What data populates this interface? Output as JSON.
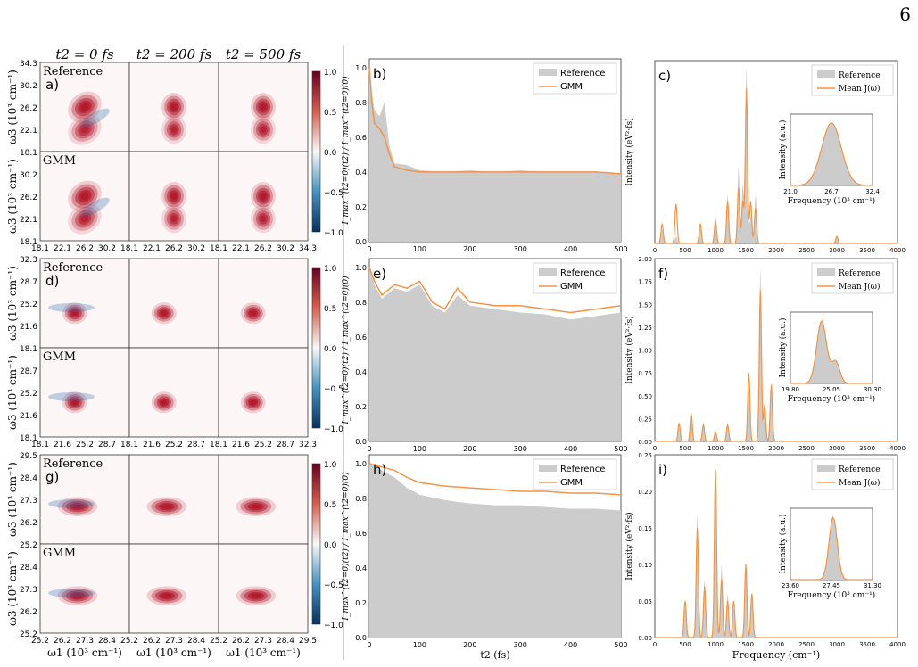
{
  "page_number": "6",
  "col_titles": [
    "t2 = 0 fs",
    "t2 = 200 fs",
    "t2 = 500 fs"
  ],
  "row_labels": {
    "reference": "Reference",
    "gmm": "GMM"
  },
  "omega1_label": "ω1 (10³ cm⁻¹)",
  "omega3_label": "ω3 (10³ cm⁻¹)",
  "colorbar_ticks": [
    "1.0",
    "0.5",
    "0.0",
    "−0.5",
    "−1.0"
  ],
  "decay_ylabel": "I_max^(t2=0)(t2) / I_max^(t2=0)(0)",
  "t2_label": "t2 (fs)",
  "spectrum_ylabel": "Intensity (eV²·fs)",
  "frequency_label": "Frequency (cm⁻¹)",
  "inset_ylabel": "Intensity (a.u.)",
  "inset_xlabel": "Frequency (10³ cm⁻¹)",
  "legend_decay": [
    "Reference",
    "GMM"
  ],
  "legend_spectrum": [
    "Reference",
    "Mean J(ω)"
  ],
  "colors": {
    "reference": "#cccccc",
    "model": "#f0944a",
    "positive": "#b2182b",
    "negative": "#2166ac"
  },
  "systems": [
    {
      "map_label": "a)",
      "decay_label": "b)",
      "spectrum_label": "c)",
      "map_ticks": [
        "34.3",
        "30.2",
        "26.2",
        "22.1",
        "18.1"
      ],
      "map_xticks": [
        "18.1",
        "22.1",
        "26.2",
        "30.2"
      ],
      "map_xticks_last": [
        "18.1",
        "22.1",
        "26.2",
        "30.2",
        "34.3"
      ],
      "peaks": [
        {
          "w1": 26.2,
          "w3": 26.2,
          "a": 1.0
        },
        {
          "w1": 26.2,
          "w3": 22.1,
          "a": 0.8
        }
      ],
      "decay_yticks": [
        "0.0",
        "0.2",
        "0.4",
        "0.6",
        "0.8",
        "1.0"
      ],
      "decay_xticks": [
        "0",
        "100",
        "200",
        "300",
        "400",
        "500"
      ],
      "spec_yticks": [],
      "spec_xticks": [
        "0",
        "500",
        "1000",
        "1500",
        "2000",
        "2500",
        "3000",
        "3500",
        "4000"
      ],
      "inset_xticks": [
        "21.0",
        "26.7",
        "32.4"
      ]
    },
    {
      "map_label": "d)",
      "decay_label": "e)",
      "spectrum_label": "f)",
      "map_ticks": [
        "32.3",
        "28.7",
        "25.2",
        "21.6",
        "18.1"
      ],
      "map_xticks": [
        "18.1",
        "21.6",
        "25.2",
        "28.7"
      ],
      "map_xticks_last": [
        "18.1",
        "21.6",
        "25.2",
        "28.7",
        "32.3"
      ],
      "peaks": [
        {
          "w1": 23.6,
          "w3": 23.6,
          "a": 1.0
        }
      ],
      "decay_yticks": [
        "0.0",
        "0.2",
        "0.4",
        "0.6",
        "0.8",
        "1.0"
      ],
      "decay_xticks": [
        "0",
        "100",
        "200",
        "300",
        "400",
        "500"
      ],
      "spec_yticks": [
        "0.00",
        "0.25",
        "0.50",
        "0.75",
        "1.00",
        "1.25",
        "1.50",
        "1.75",
        "2.00"
      ],
      "spec_xticks": [
        "0",
        "500",
        "1000",
        "1500",
        "2000",
        "2500",
        "3000",
        "3500",
        "4000"
      ],
      "inset_xticks": [
        "19.80",
        "25.05",
        "30.30"
      ]
    },
    {
      "map_label": "g)",
      "decay_label": "h)",
      "spectrum_label": "i)",
      "map_ticks": [
        "29.5",
        "28.4",
        "27.3",
        "26.2",
        "25.2"
      ],
      "map_xticks": [
        "25.2",
        "26.2",
        "27.3",
        "28.4"
      ],
      "map_xticks_last": [
        "25.2",
        "26.2",
        "27.3",
        "28.4",
        "29.5"
      ],
      "peaks": [
        {
          "w1": 27.0,
          "w3": 27.0,
          "a": 1.0
        }
      ],
      "decay_yticks": [
        "0.0",
        "0.2",
        "0.4",
        "0.6",
        "0.8",
        "1.0"
      ],
      "decay_xticks": [
        "0",
        "100",
        "200",
        "300",
        "400",
        "500"
      ],
      "spec_yticks": [
        "0.00",
        "0.05",
        "0.10",
        "0.15",
        "0.20",
        "0.25"
      ],
      "spec_xticks": [
        "0",
        "500",
        "1000",
        "1500",
        "2000",
        "2500",
        "3000",
        "3500",
        "4000"
      ],
      "inset_xticks": [
        "23.60",
        "27.45",
        "31.30"
      ]
    }
  ],
  "chart_data": [
    {
      "type": "line",
      "panel": "b)",
      "x": [
        0,
        5,
        10,
        20,
        30,
        40,
        50,
        75,
        100,
        150,
        200,
        250,
        300,
        350,
        400,
        450,
        500
      ],
      "series": [
        {
          "name": "Reference",
          "values": [
            1.0,
            0.85,
            0.76,
            0.72,
            0.8,
            0.55,
            0.45,
            0.44,
            0.41,
            0.4,
            0.41,
            0.4,
            0.41,
            0.4,
            0.4,
            0.4,
            0.39
          ]
        },
        {
          "name": "GMM",
          "values": [
            1.0,
            0.8,
            0.68,
            0.65,
            0.6,
            0.5,
            0.43,
            0.41,
            0.4,
            0.4,
            0.4,
            0.4,
            0.4,
            0.4,
            0.4,
            0.4,
            0.39
          ]
        }
      ],
      "xlim": [
        0,
        500
      ],
      "ylim": [
        0,
        1.05
      ]
    },
    {
      "type": "line",
      "panel": "e)",
      "x": [
        0,
        10,
        25,
        50,
        75,
        100,
        125,
        150,
        175,
        200,
        250,
        300,
        350,
        400,
        450,
        500
      ],
      "series": [
        {
          "name": "Reference",
          "values": [
            1.0,
            0.9,
            0.82,
            0.88,
            0.86,
            0.9,
            0.78,
            0.74,
            0.84,
            0.78,
            0.76,
            0.74,
            0.73,
            0.7,
            0.72,
            0.74
          ]
        },
        {
          "name": "GMM",
          "values": [
            1.0,
            0.92,
            0.84,
            0.9,
            0.88,
            0.92,
            0.8,
            0.76,
            0.88,
            0.8,
            0.78,
            0.78,
            0.76,
            0.74,
            0.76,
            0.78
          ]
        }
      ],
      "xlim": [
        0,
        500
      ],
      "ylim": [
        0,
        1.05
      ]
    },
    {
      "type": "line",
      "panel": "h)",
      "x": [
        0,
        10,
        25,
        50,
        75,
        100,
        150,
        200,
        250,
        300,
        350,
        400,
        450,
        500
      ],
      "series": [
        {
          "name": "Reference",
          "values": [
            1.0,
            0.99,
            0.96,
            0.92,
            0.86,
            0.82,
            0.79,
            0.77,
            0.76,
            0.76,
            0.75,
            0.74,
            0.74,
            0.73
          ]
        },
        {
          "name": "GMM",
          "values": [
            1.0,
            0.99,
            0.98,
            0.96,
            0.92,
            0.89,
            0.87,
            0.86,
            0.85,
            0.84,
            0.84,
            0.83,
            0.83,
            0.82
          ]
        }
      ],
      "xlim": [
        0,
        500
      ],
      "ylim": [
        0,
        1.05
      ]
    },
    {
      "type": "line",
      "panel": "c)",
      "peaks": [
        {
          "x": 120,
          "ref": 0.1,
          "model": 0.14
        },
        {
          "x": 350,
          "ref": 0.05,
          "model": 0.28
        },
        {
          "x": 750,
          "ref": 0.12,
          "model": 0.14
        },
        {
          "x": 1000,
          "ref": 0.2,
          "model": 0.16
        },
        {
          "x": 1200,
          "ref": 0.35,
          "model": 0.3
        },
        {
          "x": 1380,
          "ref": 0.55,
          "model": 0.4
        },
        {
          "x": 1450,
          "ref": 0.42,
          "model": 0.3
        },
        {
          "x": 1510,
          "ref": 1.26,
          "model": 1.1
        },
        {
          "x": 1580,
          "ref": 0.2,
          "model": 0.3
        },
        {
          "x": 1660,
          "ref": 0.35,
          "model": 0.25
        },
        {
          "x": 3000,
          "ref": 0.04,
          "model": 0.05
        }
      ],
      "xlim": [
        0,
        4000
      ]
    },
    {
      "type": "line",
      "panel": "f)",
      "peaks": [
        {
          "x": 400,
          "ref": 0.18,
          "model": 0.2
        },
        {
          "x": 600,
          "ref": 0.32,
          "model": 0.3
        },
        {
          "x": 800,
          "ref": 0.2,
          "model": 0.18
        },
        {
          "x": 1000,
          "ref": 0.12,
          "model": 0.1
        },
        {
          "x": 1200,
          "ref": 0.2,
          "model": 0.18
        },
        {
          "x": 1550,
          "ref": 0.6,
          "model": 0.75
        },
        {
          "x": 1740,
          "ref": 1.9,
          "model": 1.65
        },
        {
          "x": 1810,
          "ref": 0.35,
          "model": 0.4
        },
        {
          "x": 1920,
          "ref": 0.52,
          "model": 0.62
        }
      ],
      "xlim": [
        0,
        4000
      ],
      "ylim": [
        0,
        2.0
      ]
    },
    {
      "type": "line",
      "panel": "i)",
      "peaks": [
        {
          "x": 500,
          "ref": 0.04,
          "model": 0.05
        },
        {
          "x": 700,
          "ref": 0.17,
          "model": 0.15
        },
        {
          "x": 820,
          "ref": 0.08,
          "model": 0.07
        },
        {
          "x": 1000,
          "ref": 0.225,
          "model": 0.23
        },
        {
          "x": 1100,
          "ref": 0.1,
          "model": 0.08
        },
        {
          "x": 1200,
          "ref": 0.06,
          "model": 0.05
        },
        {
          "x": 1300,
          "ref": 0.04,
          "model": 0.05
        },
        {
          "x": 1500,
          "ref": 0.1,
          "model": 0.1
        },
        {
          "x": 1600,
          "ref": 0.06,
          "model": 0.06
        }
      ],
      "xlim": [
        0,
        4000
      ],
      "ylim": [
        0,
        0.25
      ]
    }
  ]
}
